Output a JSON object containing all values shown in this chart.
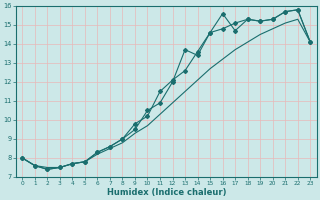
{
  "xlabel": "Humidex (Indice chaleur)",
  "xlim": [
    -0.5,
    23.5
  ],
  "ylim": [
    7,
    16
  ],
  "yticks": [
    7,
    8,
    9,
    10,
    11,
    12,
    13,
    14,
    15,
    16
  ],
  "xticks": [
    0,
    1,
    2,
    3,
    4,
    5,
    6,
    7,
    8,
    9,
    10,
    11,
    12,
    13,
    14,
    15,
    16,
    17,
    18,
    19,
    20,
    21,
    22,
    23
  ],
  "bg_color": "#cce8e8",
  "line_color": "#1a6e6e",
  "grid_color": "#e8b8b8",
  "line1_x": [
    0,
    1,
    2,
    3,
    4,
    5,
    6,
    7,
    8,
    9,
    10,
    11,
    12,
    13,
    14,
    15,
    16,
    17,
    18,
    19,
    20,
    21,
    22,
    23
  ],
  "line1_y": [
    8.0,
    7.6,
    7.4,
    7.5,
    7.7,
    7.8,
    8.3,
    8.6,
    9.0,
    9.5,
    10.5,
    10.9,
    12.0,
    13.7,
    13.4,
    14.6,
    15.6,
    14.7,
    15.3,
    15.2,
    15.3,
    15.7,
    15.8,
    14.1
  ],
  "line2_x": [
    0,
    1,
    2,
    3,
    4,
    5,
    6,
    7,
    8,
    9,
    10,
    11,
    12,
    13,
    14,
    15,
    16,
    17,
    18,
    19,
    20,
    21,
    22,
    23
  ],
  "line2_y": [
    8.0,
    7.6,
    7.4,
    7.5,
    7.7,
    7.8,
    8.3,
    8.6,
    9.0,
    9.8,
    10.2,
    11.5,
    12.1,
    12.6,
    13.6,
    14.6,
    14.8,
    15.1,
    15.3,
    15.2,
    15.3,
    15.7,
    15.8,
    14.1
  ],
  "line3_x": [
    0,
    1,
    2,
    3,
    4,
    5,
    6,
    7,
    8,
    9,
    10,
    11,
    12,
    13,
    14,
    15,
    16,
    17,
    18,
    19,
    20,
    21,
    22,
    23
  ],
  "line3_y": [
    8.0,
    7.6,
    7.5,
    7.5,
    7.7,
    7.8,
    8.2,
    8.5,
    8.8,
    9.3,
    9.7,
    10.3,
    10.9,
    11.5,
    12.1,
    12.7,
    13.2,
    13.7,
    14.1,
    14.5,
    14.8,
    15.1,
    15.3,
    14.1
  ]
}
